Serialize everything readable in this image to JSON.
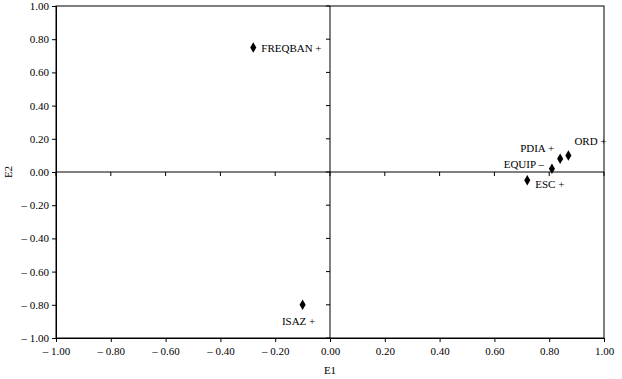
{
  "chart_data": {
    "type": "scatter",
    "x_label": "E1",
    "y_label": "E2",
    "x": [
      -0.28,
      -0.1,
      0.87,
      0.84,
      0.81,
      0.72
    ],
    "y": [
      0.75,
      -0.8,
      0.1,
      0.08,
      0.02,
      -0.05
    ],
    "labels": [
      "FREQBAN +",
      "ISAZ +",
      "ORD +",
      "PDIA +",
      "EQUIP –",
      "ESC +"
    ],
    "color": "#000000",
    "marker": "diamond",
    "grid": false,
    "xlim": [
      -1,
      1
    ],
    "ylim": [
      -1,
      1
    ],
    "xticks": [
      {
        "value": -1,
        "label": "– 1.00"
      },
      {
        "value": -0.8,
        "label": "– 0.80"
      },
      {
        "value": -0.6,
        "label": "– 0.60"
      },
      {
        "value": -0.4,
        "label": "– 0.40"
      },
      {
        "value": -0.2,
        "label": "– 0.20"
      },
      {
        "value": 0,
        "label": "0.00"
      },
      {
        "value": 0.2,
        "label": "0.20"
      },
      {
        "value": 0.4,
        "label": "0.40"
      },
      {
        "value": 0.6,
        "label": "0.60"
      },
      {
        "value": 0.8,
        "label": "0.80"
      },
      {
        "value": 1,
        "label": "1.00"
      }
    ],
    "yticks": [
      {
        "value": -1,
        "label": "– 1.00"
      },
      {
        "value": -0.8,
        "label": "– 0.80"
      },
      {
        "value": -0.6,
        "label": "– 0.60"
      },
      {
        "value": -0.4,
        "label": "– 0.40"
      },
      {
        "value": -0.2,
        "label": "– 0.20"
      },
      {
        "value": 0,
        "label": "0.00"
      },
      {
        "value": 0.2,
        "label": "0.20"
      },
      {
        "value": 0.4,
        "label": "0.40"
      },
      {
        "value": 0.6,
        "label": "0.60"
      },
      {
        "value": 0.8,
        "label": "0.80"
      },
      {
        "value": 1,
        "label": "1.00"
      }
    ]
  }
}
